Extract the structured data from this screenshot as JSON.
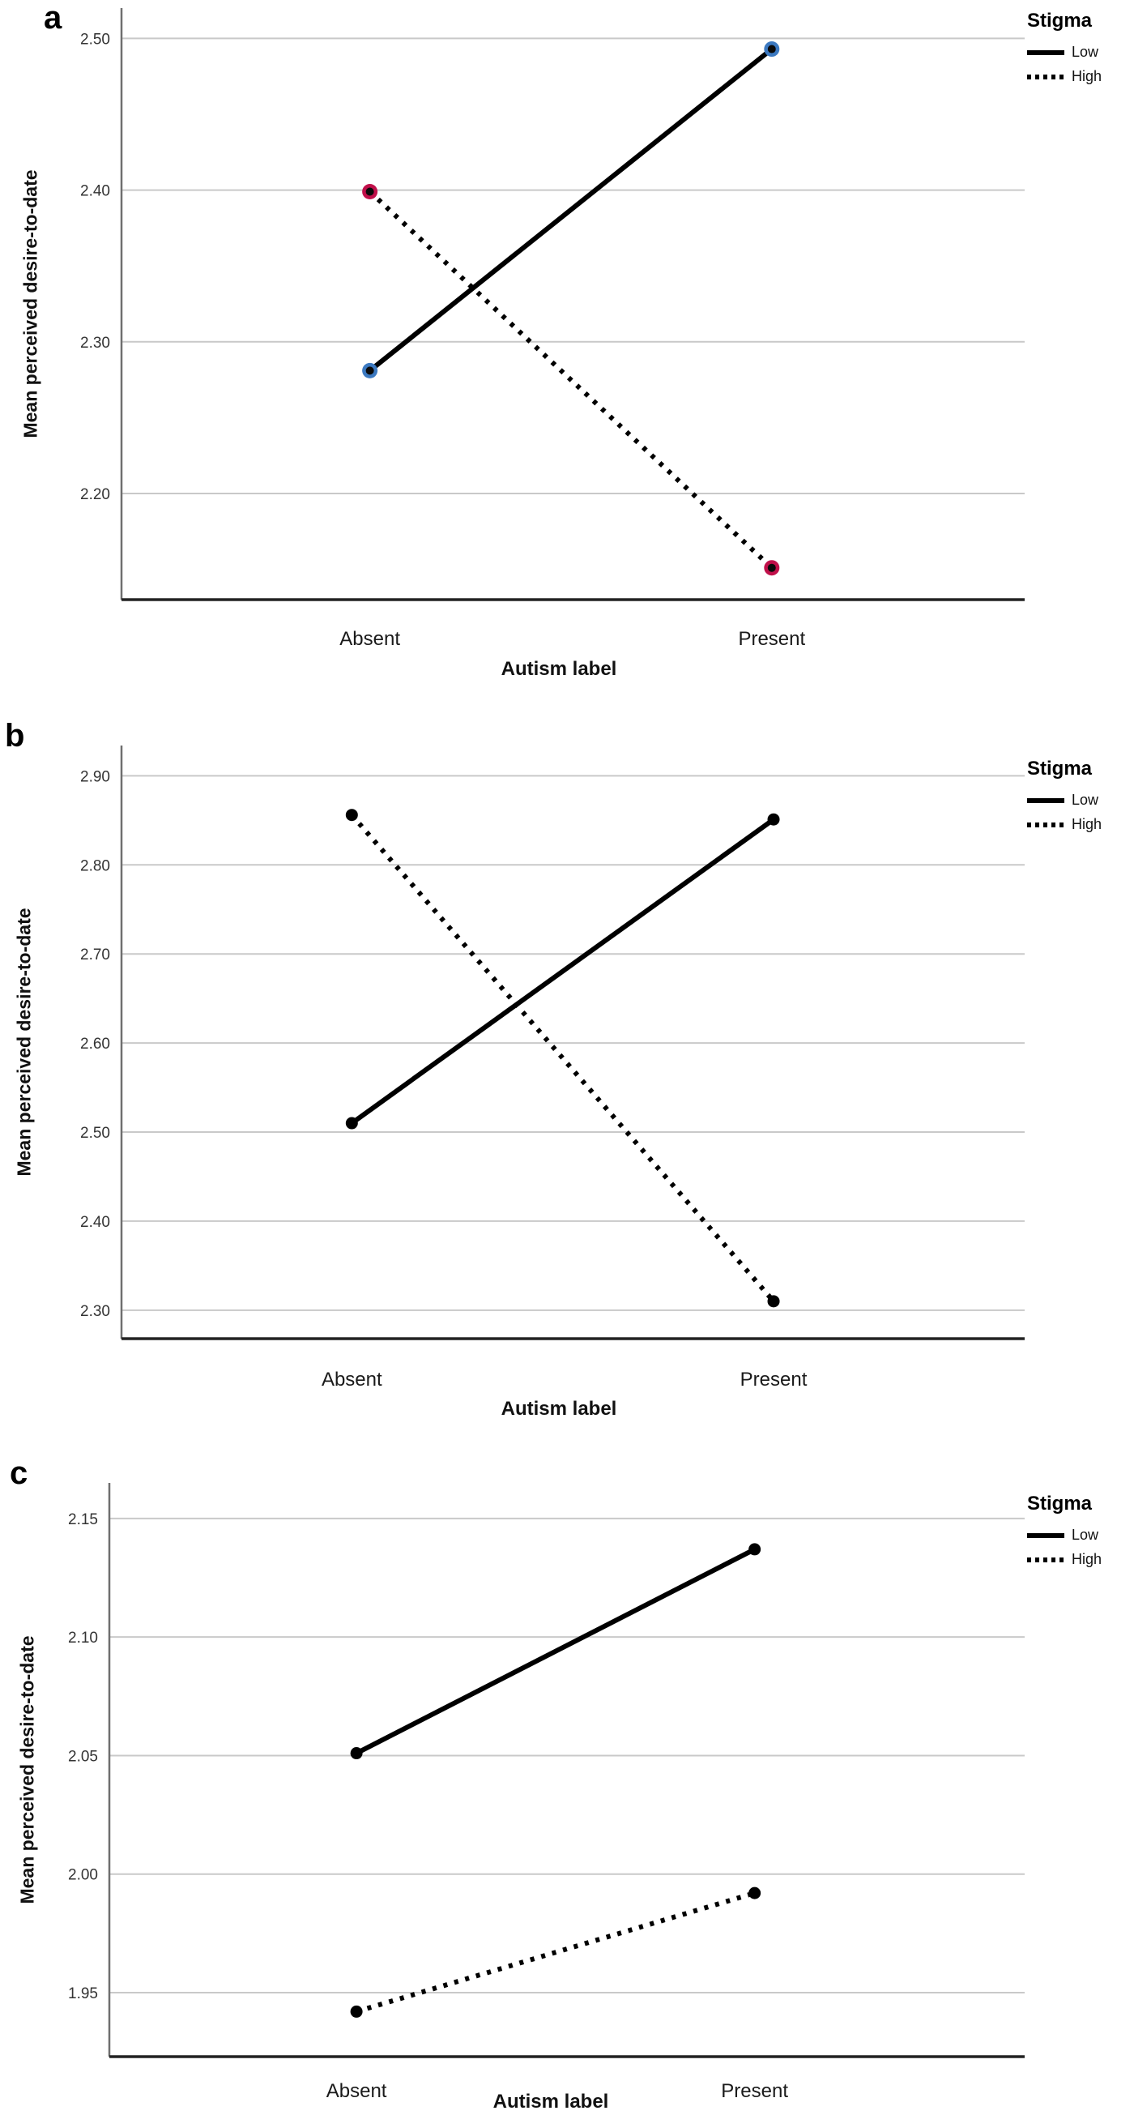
{
  "figure": {
    "background": "#ffffff",
    "axis_color": "#6f6f6f",
    "baseline_color": "#222222",
    "gridline_color": "#c9c9c9",
    "line_color": "#000000"
  },
  "chart_data": [
    {
      "panel_label": "a",
      "type": "line",
      "title": "",
      "xlabel": "Autism label",
      "ylabel": "Mean perceived desire-to-date",
      "categories": [
        "Absent",
        "Present"
      ],
      "yticks": [
        2.2,
        2.3,
        2.4,
        2.5
      ],
      "ytick_labels": [
        "2.20",
        "2.30",
        "2.40",
        "2.50"
      ],
      "ylim": [
        2.13,
        2.52
      ],
      "grid": true,
      "legend_title": "Stigma",
      "legend_position": "top-right-outside",
      "series": [
        {
          "name": "Low",
          "line_style": "solid",
          "line_color": "#000000",
          "marker_color": "#3c79c0",
          "values": [
            2.281,
            2.493
          ]
        },
        {
          "name": "High",
          "line_style": "dotted",
          "line_color": "#000000",
          "marker_color": "#c0104a",
          "values": [
            2.399,
            2.151
          ]
        }
      ]
    },
    {
      "panel_label": "b",
      "type": "line",
      "title": "",
      "xlabel": "Autism label",
      "ylabel": "Mean perceived desire-to-date",
      "categories": [
        "Absent",
        "Present"
      ],
      "yticks": [
        2.3,
        2.4,
        2.5,
        2.6,
        2.7,
        2.8,
        2.9
      ],
      "ytick_labels": [
        "2.30",
        "2.40",
        "2.50",
        "2.60",
        "2.70",
        "2.80",
        "2.90"
      ],
      "ylim": [
        2.268,
        2.934
      ],
      "grid": true,
      "legend_title": "Stigma",
      "legend_position": "top-right-outside",
      "series": [
        {
          "name": "Low",
          "line_style": "solid",
          "line_color": "#000000",
          "marker_color": "#000000",
          "values": [
            2.51,
            2.851
          ]
        },
        {
          "name": "High",
          "line_style": "dotted",
          "line_color": "#000000",
          "marker_color": "#000000",
          "values": [
            2.856,
            2.31
          ]
        }
      ]
    },
    {
      "panel_label": "c",
      "type": "line",
      "title": "",
      "xlabel": "Autism label",
      "ylabel": "Mean perceived desire-to-date",
      "categories": [
        "Absent",
        "Present"
      ],
      "yticks": [
        1.95,
        2.0,
        2.05,
        2.1,
        2.15
      ],
      "ytick_labels": [
        "1.95",
        "2.00",
        "2.05",
        "2.10",
        "2.15"
      ],
      "ylim": [
        1.923,
        2.165
      ],
      "grid": true,
      "legend_title": "Stigma",
      "legend_position": "top-right-outside",
      "series": [
        {
          "name": "Low",
          "line_style": "solid",
          "line_color": "#000000",
          "marker_color": "#000000",
          "values": [
            2.051,
            2.137
          ]
        },
        {
          "name": "High",
          "line_style": "dotted",
          "line_color": "#000000",
          "marker_color": "#000000",
          "values": [
            1.942,
            1.992
          ]
        }
      ]
    }
  ]
}
